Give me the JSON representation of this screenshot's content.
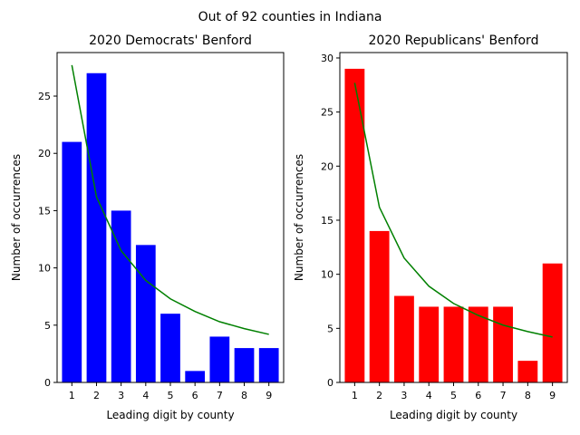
{
  "figure": {
    "suptitle": "Out of 92 counties in Indiana"
  },
  "chart_data": [
    {
      "type": "bar",
      "title": "2020 Democrats' Benford",
      "xlabel": "Leading digit by county",
      "ylabel": "Number of occurrences",
      "categories": [
        "1",
        "2",
        "3",
        "4",
        "5",
        "6",
        "7",
        "8",
        "9"
      ],
      "ylim": [
        0,
        28.8
      ],
      "yticks": [
        0,
        5,
        10,
        15,
        20,
        25
      ],
      "bar_color": "#0000ff",
      "series": [
        {
          "type": "bar",
          "values": [
            21,
            27,
            15,
            12,
            6,
            1,
            4,
            3,
            3
          ],
          "color": "#0000ff"
        },
        {
          "type": "line",
          "values": [
            27.7,
            16.2,
            11.5,
            8.9,
            7.3,
            6.2,
            5.3,
            4.7,
            4.2
          ],
          "color": "#008000"
        }
      ],
      "grid": false
    },
    {
      "type": "bar",
      "title": "2020 Republicans' Benford",
      "xlabel": "Leading digit by county",
      "ylabel": "Number of occurrences",
      "categories": [
        "1",
        "2",
        "3",
        "4",
        "5",
        "6",
        "7",
        "8",
        "9"
      ],
      "ylim": [
        0,
        30.5
      ],
      "yticks": [
        0,
        5,
        10,
        15,
        20,
        25,
        30
      ],
      "bar_color": "#ff0000",
      "series": [
        {
          "type": "bar",
          "values": [
            29,
            14,
            8,
            7,
            7,
            7,
            7,
            2,
            11
          ],
          "color": "#ff0000"
        },
        {
          "type": "line",
          "values": [
            27.7,
            16.2,
            11.5,
            8.9,
            7.3,
            6.2,
            5.3,
            4.7,
            4.2
          ],
          "color": "#008000"
        }
      ],
      "grid": false
    }
  ]
}
